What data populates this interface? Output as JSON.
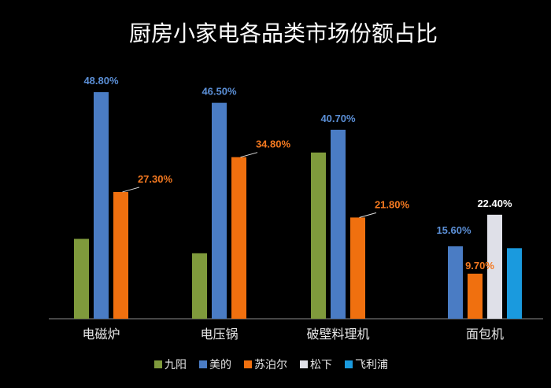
{
  "chart_data": {
    "type": "bar",
    "title": "厨房小家电各品类市场份额占比",
    "categories": [
      "电磁炉",
      "电压锅",
      "破壁料理机",
      "面包机"
    ],
    "ylim": [
      0,
      56
    ],
    "grid": false,
    "legend_position": "bottom",
    "series": [
      {
        "name": "九阳",
        "color": "#7f9a3c",
        "values": [
          17.2,
          14.1,
          35.8,
          null
        ],
        "labels": [
          null,
          null,
          null,
          null
        ]
      },
      {
        "name": "美的",
        "color": "#4a7cc4",
        "values": [
          48.8,
          46.5,
          40.7,
          15.6
        ],
        "labels": [
          "48.80%",
          "46.50%",
          "40.70%",
          "15.60%"
        ]
      },
      {
        "name": "苏泊尔",
        "color": "#f0700f",
        "values": [
          27.3,
          34.8,
          21.8,
          9.7
        ],
        "labels": [
          "27.30%",
          "34.80%",
          "21.80%",
          "9.70%"
        ]
      },
      {
        "name": "松下",
        "color": "#dfe0e8",
        "values": [
          null,
          null,
          null,
          22.4
        ],
        "labels": [
          null,
          null,
          null,
          "22.40%"
        ]
      },
      {
        "name": "飞利浦",
        "color": "#1a9ade",
        "values": [
          null,
          null,
          null,
          15.2
        ],
        "labels": [
          null,
          null,
          null,
          null
        ]
      }
    ]
  }
}
